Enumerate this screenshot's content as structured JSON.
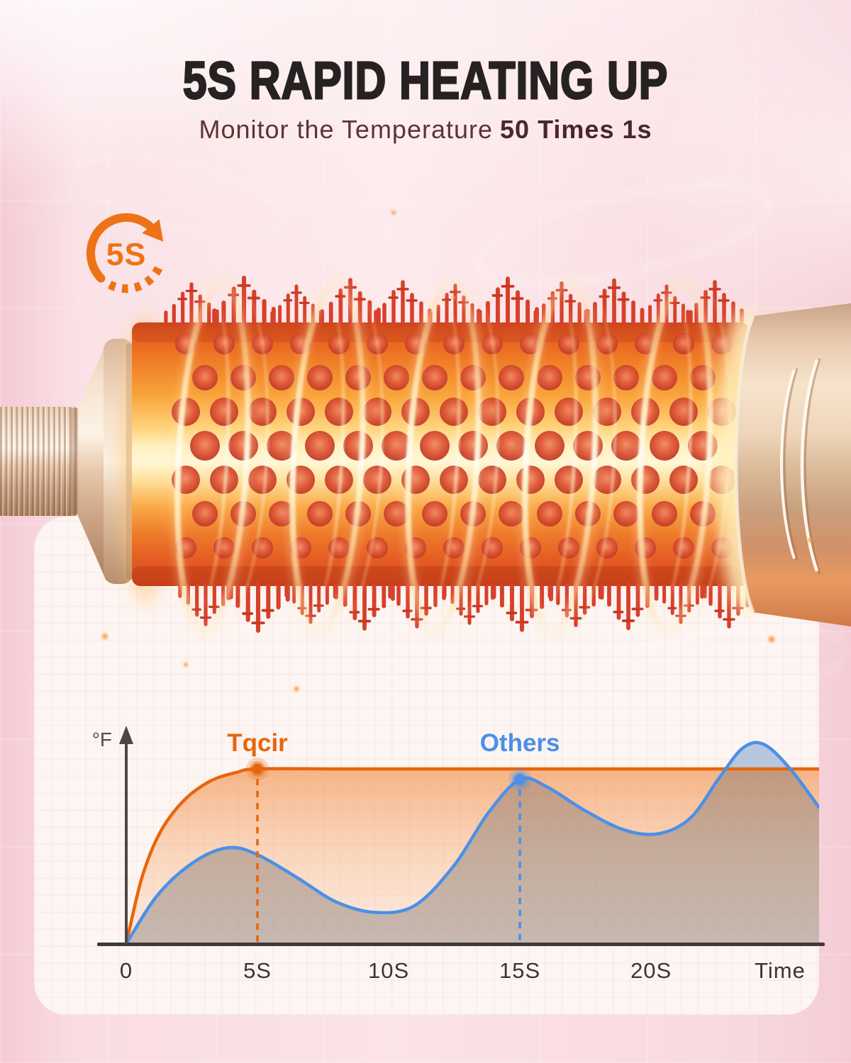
{
  "colors": {
    "accent_orange": "#EE7216",
    "title_text": "#272222",
    "subtitle_text": "#5E3434",
    "panel_bg": "#FDF5F2",
    "page_pink": "#FAE2E6",
    "axis": "#453F3F"
  },
  "header": {
    "title": "5S RAPID HEATING UP",
    "subtitle_regular": "Monitor the Temperature",
    "subtitle_bold": "50 Times 1s"
  },
  "badge": {
    "label": "5S",
    "icon": "clockwise-timer-arrow-icon",
    "color": "#EE7216"
  },
  "chart_data": {
    "type": "line",
    "title": "",
    "xlabel": "Time",
    "ylabel": "°F",
    "x_unit": "seconds",
    "xlim": [
      0,
      26.4
    ],
    "ylim": [
      0,
      120
    ],
    "grid": true,
    "legend_position": "labels-above-markers",
    "x_ticks": [
      {
        "value": 0,
        "label": "0"
      },
      {
        "value": 5,
        "label": "5S"
      },
      {
        "value": 10,
        "label": "10S"
      },
      {
        "value": 15,
        "label": "15S"
      },
      {
        "value": 20,
        "label": "20S"
      }
    ],
    "x_axis_end_label": "Time",
    "series": [
      {
        "name": "Tqcir",
        "color": "#E8650C",
        "fill_style": "orange-gradient",
        "marker_at": {
          "x": 5,
          "y": 100
        },
        "annotation": "reaches max temperature at 5s then holds steady",
        "points": [
          [
            0,
            0
          ],
          [
            0.6,
            38
          ],
          [
            1.3,
            64
          ],
          [
            2.2,
            82
          ],
          [
            3.2,
            93
          ],
          [
            4.2,
            98
          ],
          [
            5,
            100
          ],
          [
            8,
            100
          ],
          [
            12,
            100
          ],
          [
            16,
            100
          ],
          [
            20,
            100
          ],
          [
            23,
            100
          ],
          [
            26.4,
            100
          ]
        ]
      },
      {
        "name": "Others",
        "color": "#4A90E8",
        "fill_style": "gray",
        "overflow_fill": "rgba(172,205,244,0.6)",
        "marker_at": {
          "x": 15,
          "y": 94
        },
        "annotation": "fluctuates, overshoots max after 20s",
        "points": [
          [
            0,
            0
          ],
          [
            1.2,
            28
          ],
          [
            2.6,
            47
          ],
          [
            3.9,
            55
          ],
          [
            5,
            51
          ],
          [
            6.5,
            38
          ],
          [
            8,
            24
          ],
          [
            9.5,
            18
          ],
          [
            11,
            22
          ],
          [
            12.5,
            45
          ],
          [
            13.8,
            75
          ],
          [
            15,
            94
          ],
          [
            16,
            90
          ],
          [
            17.5,
            76
          ],
          [
            19,
            65
          ],
          [
            20.3,
            63
          ],
          [
            21.5,
            72
          ],
          [
            22.6,
            95
          ],
          [
            23.5,
            112
          ],
          [
            24.3,
            114
          ],
          [
            25.3,
            100
          ],
          [
            26.4,
            78
          ]
        ]
      }
    ]
  }
}
